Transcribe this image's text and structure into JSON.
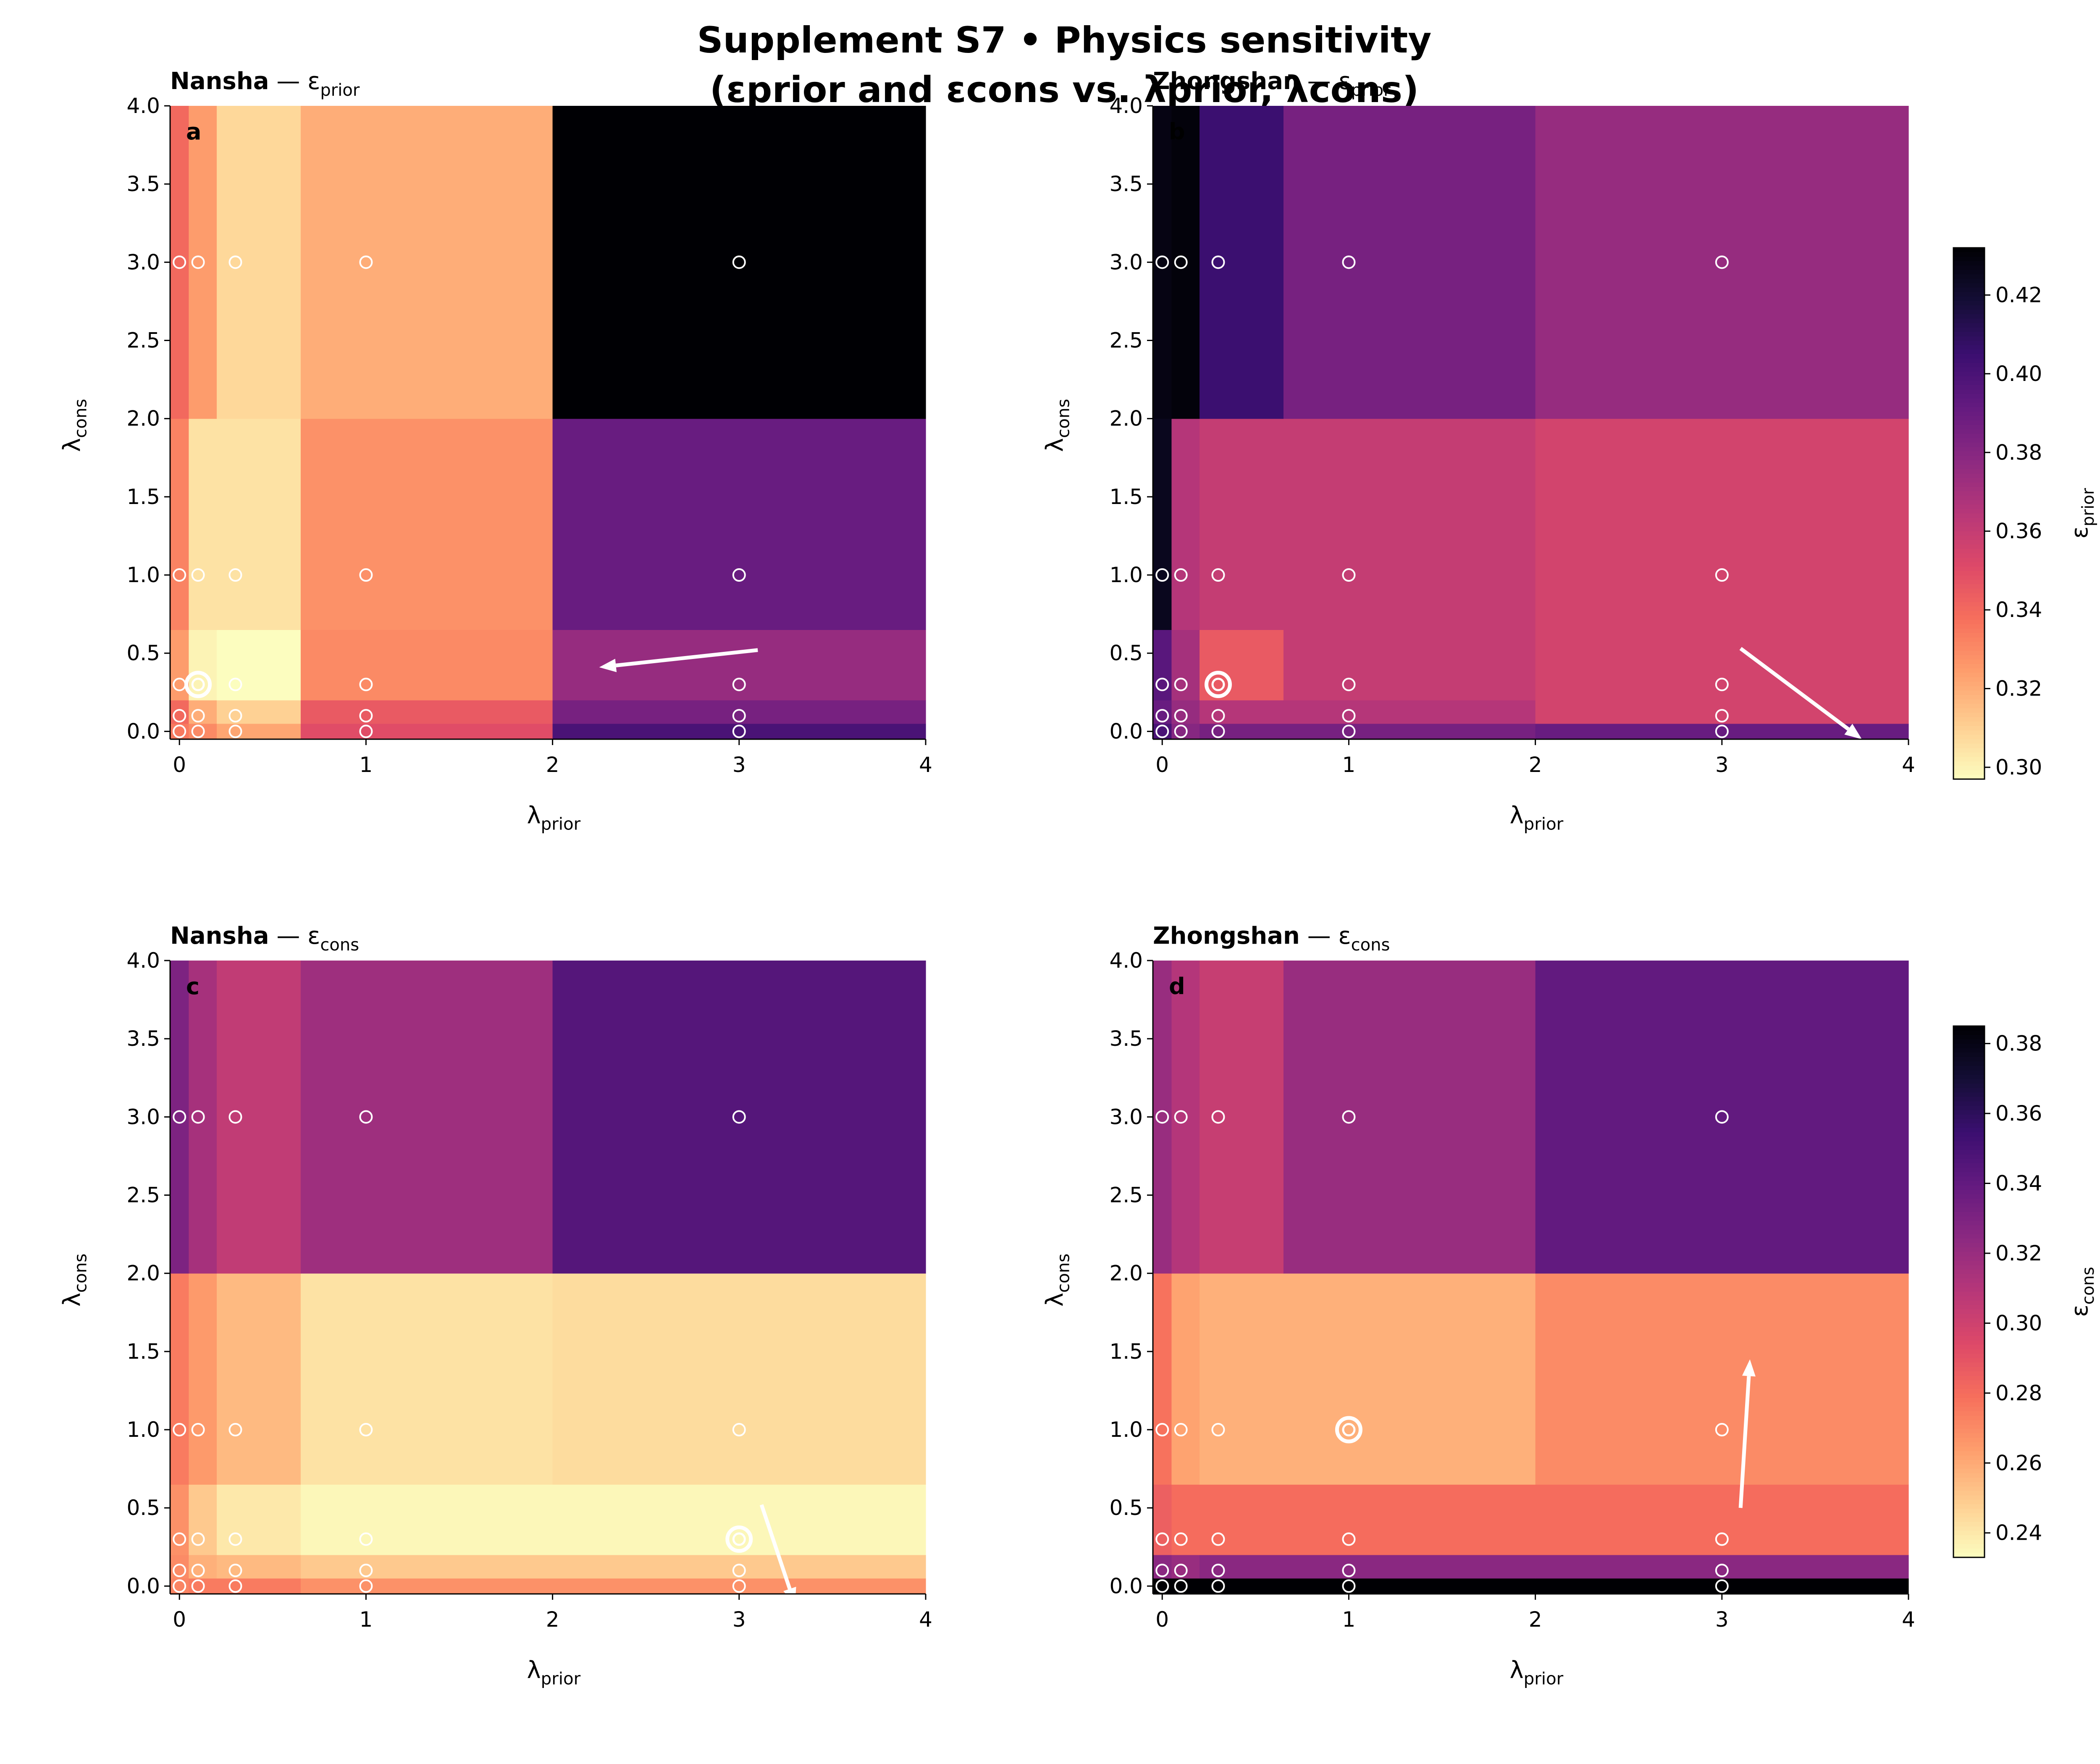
{
  "figure": {
    "title_line1": "Supplement S7 • Physics sensitivity",
    "title_line2": "(εprior and εcons vs. λprior, λcons)"
  },
  "chart_data": [
    {
      "type": "heatmap",
      "panel_letter": "a",
      "site": "Nansha",
      "title": "Nansha — εprior",
      "metric_symbol": "ε",
      "metric_sub": "prior",
      "xlabel": "λprior",
      "ylabel": "λcons",
      "x": [
        0,
        0.1,
        0.3,
        1,
        3
      ],
      "y": [
        0,
        0.1,
        0.3,
        1,
        3
      ],
      "xlim": [
        -0.05,
        4
      ],
      "ylim": [
        -0.05,
        4
      ],
      "xticks": [
        0,
        1,
        2,
        3,
        4
      ],
      "yticks": [
        0.0,
        0.5,
        1.0,
        1.5,
        2.0,
        2.5,
        3.0,
        3.5,
        4.0
      ],
      "values": [
        [
          0.335,
          0.33,
          0.322,
          0.35,
          0.4
        ],
        [
          0.34,
          0.32,
          0.31,
          0.345,
          0.385
        ],
        [
          0.325,
          0.3,
          0.297,
          0.33,
          0.375
        ],
        [
          0.332,
          0.305,
          0.305,
          0.328,
          0.39
        ],
        [
          0.34,
          0.325,
          0.308,
          0.32,
          0.432
        ]
      ],
      "colormap": "magma_r",
      "vmin": 0.297,
      "vmax": 0.432,
      "colorbar": false,
      "best": [
        0.1,
        0.3
      ],
      "arrow_start": [
        3.1,
        0.52
      ],
      "arrow_end": [
        2.25,
        0.41
      ]
    },
    {
      "type": "heatmap",
      "panel_letter": "b",
      "site": "Zhongshan",
      "title": "Zhongshan — εprior",
      "metric_symbol": "ε",
      "metric_sub": "prior",
      "xlabel": "λprior",
      "ylabel": "λcons",
      "x": [
        0,
        0.1,
        0.3,
        1,
        3
      ],
      "y": [
        0,
        0.1,
        0.3,
        1,
        3
      ],
      "xlim": [
        -0.05,
        4
      ],
      "ylim": [
        -0.05,
        4
      ],
      "xticks": [
        0,
        1,
        2,
        3,
        4
      ],
      "yticks": [
        0.0,
        0.5,
        1.0,
        1.5,
        2.0,
        2.5,
        3.0,
        3.5,
        4.0
      ],
      "values": [
        [
          0.4,
          0.38,
          0.385,
          0.385,
          0.39
        ],
        [
          0.39,
          0.375,
          0.365,
          0.365,
          0.355
        ],
        [
          0.395,
          0.37,
          0.345,
          0.36,
          0.355
        ],
        [
          0.425,
          0.365,
          0.36,
          0.36,
          0.355
        ],
        [
          0.428,
          0.43,
          0.405,
          0.385,
          0.375
        ]
      ],
      "colormap": "magma_r",
      "vmin": 0.297,
      "vmax": 0.432,
      "colorbar": true,
      "cbar_label": "εprior",
      "cbar_ticks": [
        0.3,
        0.32,
        0.34,
        0.36,
        0.38,
        0.4,
        0.42
      ],
      "best": [
        0.3,
        0.3
      ],
      "arrow_start": [
        3.1,
        0.53
      ],
      "arrow_end": [
        3.75,
        -0.05
      ]
    },
    {
      "type": "heatmap",
      "panel_letter": "c",
      "site": "Nansha",
      "title": "Nansha — εcons",
      "metric_symbol": "ε",
      "metric_sub": "cons",
      "xlabel": "λprior",
      "ylabel": "λcons",
      "x": [
        0,
        0.1,
        0.3,
        1,
        3
      ],
      "y": [
        0,
        0.1,
        0.3,
        1,
        3
      ],
      "xlim": [
        -0.05,
        4
      ],
      "ylim": [
        -0.05,
        4
      ],
      "xticks": [
        0,
        1,
        2,
        3,
        4
      ],
      "yticks": [
        0.0,
        0.5,
        1.0,
        1.5,
        2.0,
        2.5,
        3.0,
        3.5,
        4.0
      ],
      "values": [
        [
          0.272,
          0.275,
          0.275,
          0.268,
          0.268
        ],
        [
          0.27,
          0.258,
          0.255,
          0.25,
          0.25
        ],
        [
          0.268,
          0.25,
          0.24,
          0.235,
          0.235
        ],
        [
          0.275,
          0.265,
          0.255,
          0.242,
          0.244
        ],
        [
          0.33,
          0.315,
          0.305,
          0.318,
          0.345
        ]
      ],
      "colormap": "magma_r",
      "vmin": 0.233,
      "vmax": 0.385,
      "colorbar": false,
      "best": [
        3,
        0.3
      ],
      "arrow_start": [
        3.12,
        0.52
      ],
      "arrow_end": [
        3.3,
        -0.12
      ]
    },
    {
      "type": "heatmap",
      "panel_letter": "d",
      "site": "Zhongshan",
      "title": "Zhongshan — εcons",
      "metric_symbol": "ε",
      "metric_sub": "cons",
      "xlabel": "λprior",
      "ylabel": "λcons",
      "x": [
        0,
        0.1,
        0.3,
        1,
        3
      ],
      "y": [
        0,
        0.1,
        0.3,
        1,
        3
      ],
      "xlim": [
        -0.05,
        4
      ],
      "ylim": [
        -0.05,
        4
      ],
      "xticks": [
        0,
        1,
        2,
        3,
        4
      ],
      "yticks": [
        0.0,
        0.5,
        1.0,
        1.5,
        2.0,
        2.5,
        3.0,
        3.5,
        4.0
      ],
      "values": [
        [
          0.385,
          0.385,
          0.385,
          0.385,
          0.385
        ],
        [
          0.325,
          0.32,
          0.325,
          0.325,
          0.325
        ],
        [
          0.285,
          0.28,
          0.28,
          0.28,
          0.28
        ],
        [
          0.278,
          0.262,
          0.258,
          0.258,
          0.27
        ],
        [
          0.32,
          0.31,
          0.303,
          0.32,
          0.34
        ]
      ],
      "colormap": "magma_r",
      "vmin": 0.233,
      "vmax": 0.385,
      "colorbar": true,
      "cbar_label": "εcons",
      "cbar_ticks": [
        0.24,
        0.26,
        0.28,
        0.3,
        0.32,
        0.34,
        0.36,
        0.38
      ],
      "best": [
        1,
        1
      ],
      "arrow_start": [
        3.1,
        0.5
      ],
      "arrow_end": [
        3.15,
        1.45
      ]
    }
  ]
}
